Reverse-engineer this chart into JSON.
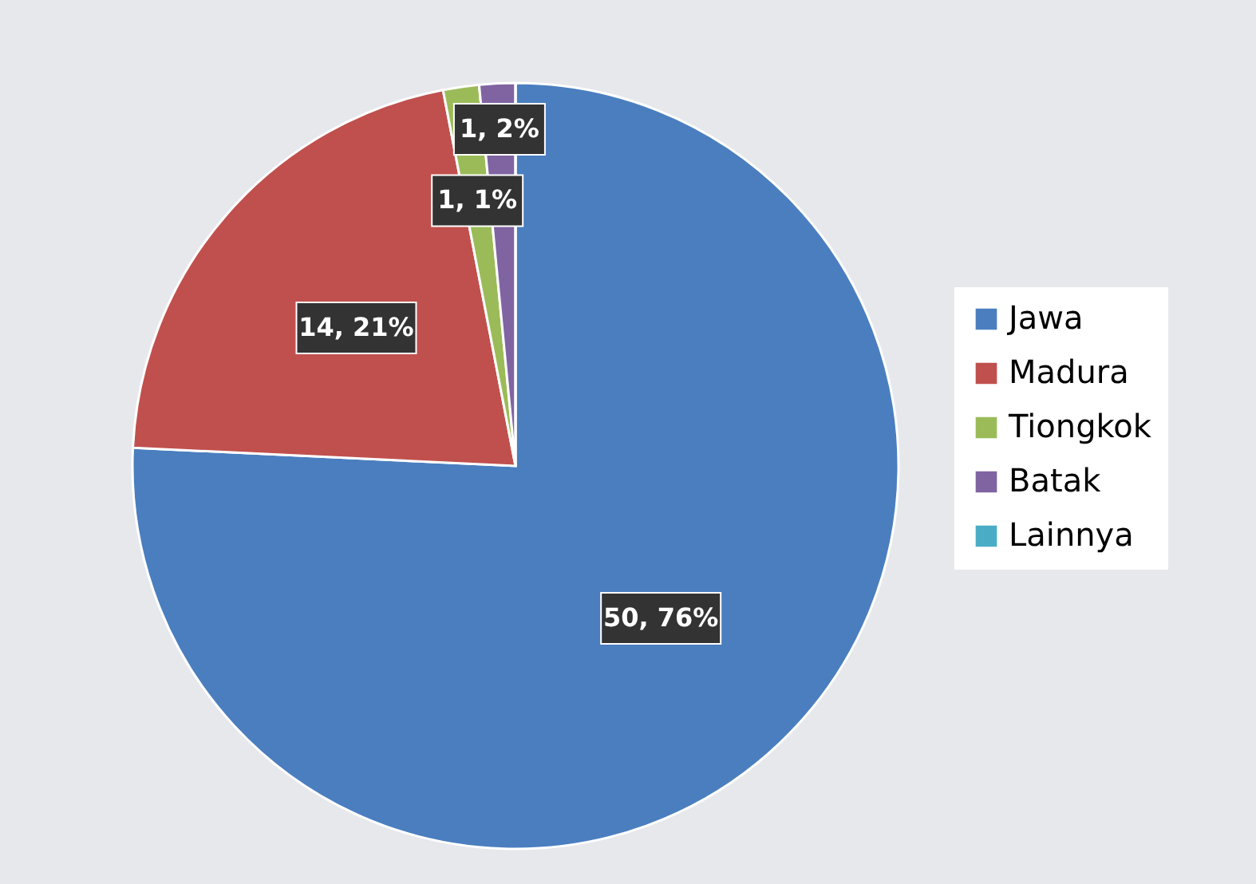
{
  "chart_data": {
    "type": "pie",
    "categories": [
      "Jawa",
      "Madura",
      "Tiongkok",
      "Batak",
      "Lainnya"
    ],
    "values": [
      50,
      14,
      1,
      1,
      0
    ],
    "colors": [
      "#4a7ebf",
      "#c0504d",
      "#9bbb59",
      "#8064a2",
      "#4bacc6"
    ],
    "value_labels": [
      "50, 76%",
      "14, 21%",
      "1, 1%",
      "1, 2%",
      null
    ],
    "legend": "right"
  }
}
